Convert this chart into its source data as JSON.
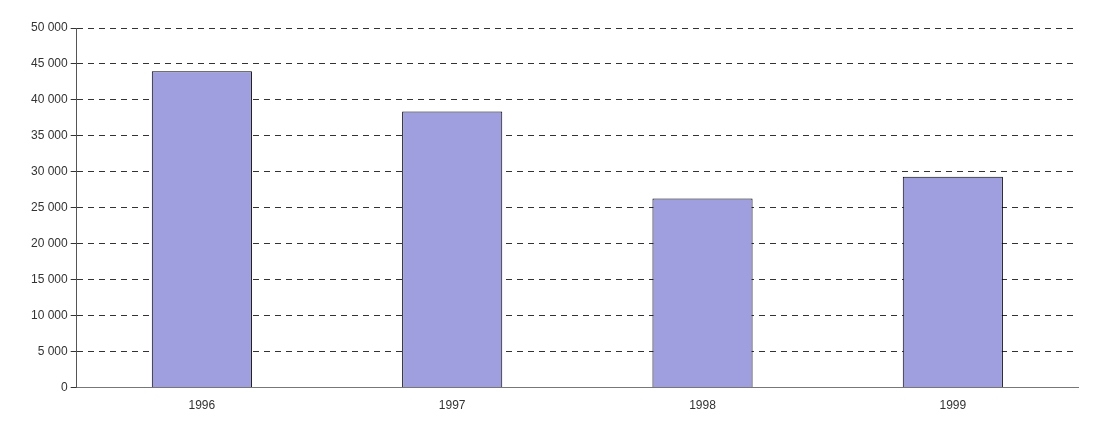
{
  "chart_data": {
    "type": "bar",
    "categories": [
      "1996",
      "1997",
      "1998",
      "1999"
    ],
    "values": [
      44000,
      38400,
      26300,
      29300
    ],
    "color": "#9f9fe0",
    "ylim": [
      0,
      50000
    ],
    "yticks": [
      {
        "value": 0,
        "label": "0"
      },
      {
        "value": 5000,
        "label": "5 000"
      },
      {
        "value": 10000,
        "label": "10 000"
      },
      {
        "value": 15000,
        "label": "15 000"
      },
      {
        "value": 20000,
        "label": "20 000"
      },
      {
        "value": 25000,
        "label": "25 000"
      },
      {
        "value": 30000,
        "label": "30 000"
      },
      {
        "value": 35000,
        "label": "35 000"
      },
      {
        "value": 40000,
        "label": "40 000"
      },
      {
        "value": 45000,
        "label": "45 000"
      },
      {
        "value": 50000,
        "label": "50 000"
      }
    ],
    "grid": "y",
    "legend": false
  }
}
